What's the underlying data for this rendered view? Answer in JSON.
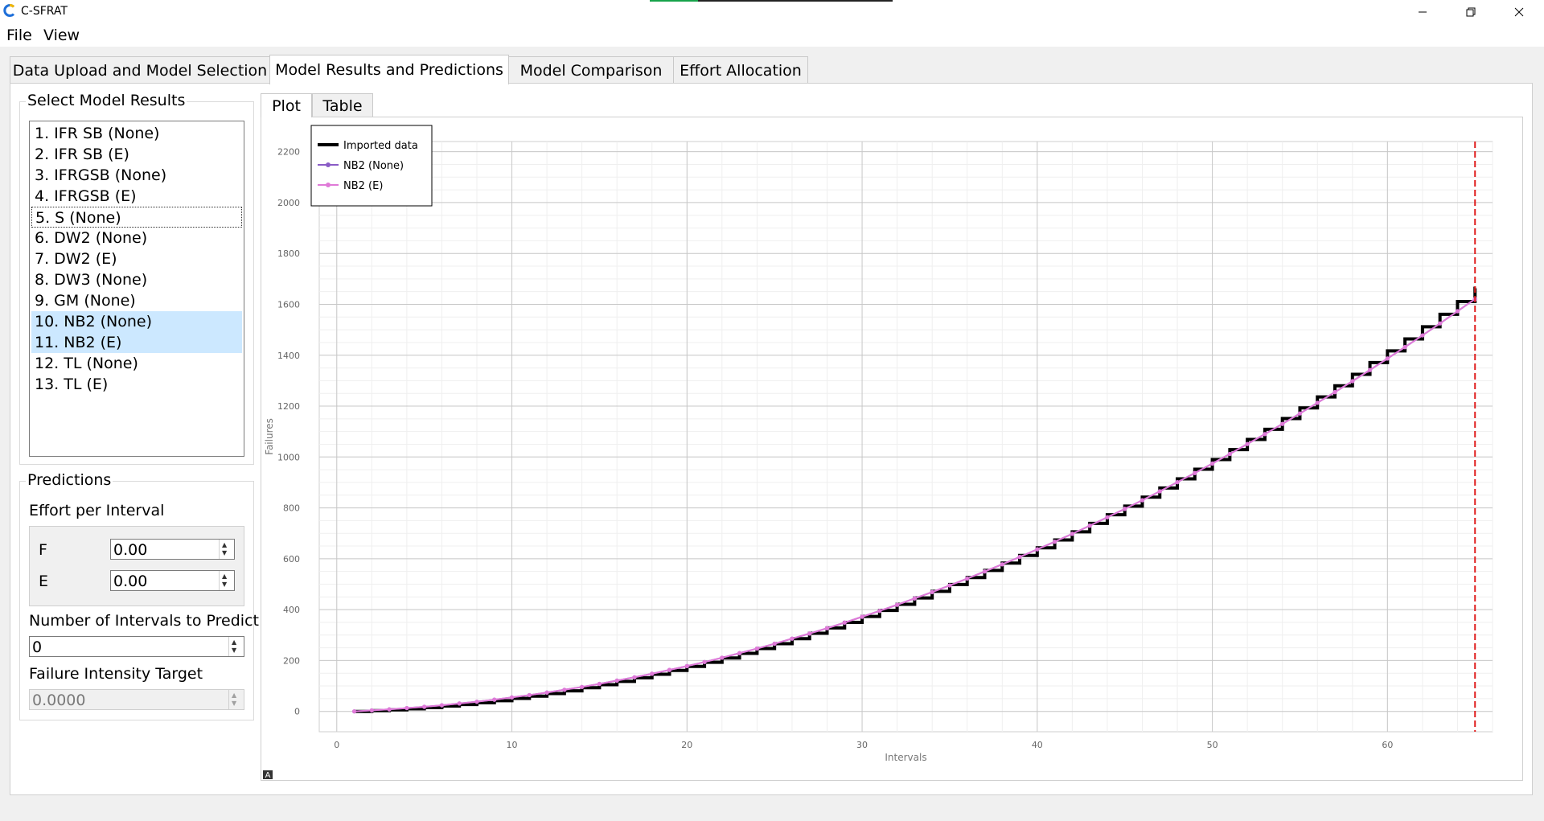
{
  "window": {
    "title": "C-SFRAT",
    "progress": 0.2
  },
  "menu": [
    "File",
    "View"
  ],
  "tabs": [
    "Data Upload and Model Selection",
    "Model Results and Predictions",
    "Model Comparison",
    "Effort Allocation"
  ],
  "active_tab": 1,
  "left": {
    "model_results_title": "Select Model Results",
    "models": [
      "1. IFR SB (None)",
      "2. IFR SB (E)",
      "3. IFRGSB (None)",
      "4. IFRGSB (E)",
      "5. S (None)",
      "6. DW2 (None)",
      "7. DW2 (E)",
      "8. DW3 (None)",
      "9. GM (None)",
      "10. NB2 (None)",
      "11. NB2 (E)",
      "12. TL (None)",
      "13. TL (E)"
    ],
    "selected": [
      9,
      10
    ],
    "focused": 4,
    "predictions": {
      "title": "Predictions",
      "effort_label": "Effort per Interval",
      "f_label": "F",
      "f_value": "0.00",
      "e_label": "E",
      "e_value": "0.00",
      "intervals_label": "Number of Intervals to Predict",
      "intervals_value": "0",
      "target_label": "Failure Intensity Target",
      "target_value": "0.0000"
    }
  },
  "plot_tabs": [
    "Plot",
    "Table"
  ],
  "colors": {
    "imported": "#000000",
    "nb2_none": "#8a5cc6",
    "nb2_e": "#e07ad8",
    "end_line": "#e02020",
    "selected_bg": "#cce8ff"
  },
  "chart_data": {
    "type": "line",
    "title": "",
    "xlabel": "Intervals",
    "ylabel": "Failures",
    "xlim": [
      -1,
      66
    ],
    "ylim": [
      -80,
      2240
    ],
    "xticks": [
      0,
      10,
      20,
      30,
      40,
      50,
      60
    ],
    "yticks": [
      0,
      200,
      400,
      600,
      800,
      1000,
      1200,
      1400,
      1600,
      1800,
      2000,
      2200
    ],
    "grid": true,
    "legend_position": "top-left",
    "end_interval": 65,
    "legend": [
      "Imported data",
      "NB2 (None)",
      "NB2 (E)"
    ],
    "series": [
      {
        "name": "Imported data",
        "style": "step",
        "x": [
          1,
          2,
          3,
          4,
          5,
          6,
          7,
          8,
          9,
          10,
          11,
          12,
          13,
          14,
          15,
          16,
          17,
          18,
          19,
          20,
          21,
          22,
          23,
          24,
          25,
          26,
          27,
          28,
          29,
          30,
          31,
          32,
          33,
          34,
          35,
          36,
          37,
          38,
          39,
          40,
          41,
          42,
          43,
          44,
          45,
          46,
          47,
          48,
          49,
          50,
          51,
          52,
          53,
          54,
          55,
          56,
          57,
          58,
          59,
          60,
          61,
          62,
          63,
          64,
          65
        ],
        "y": [
          0,
          3,
          6,
          10,
          15,
          21,
          27,
          34,
          42,
          51,
          60,
          70,
          81,
          93,
          105,
          118,
          132,
          146,
          161,
          177,
          193,
          210,
          228,
          247,
          266,
          286,
          307,
          328,
          350,
          373,
          397,
          421,
          446,
          472,
          499,
          526,
          554,
          583,
          613,
          643,
          674,
          706,
          739,
          773,
          807,
          842,
          878,
          914,
          952,
          990,
          1029,
          1069,
          1109,
          1151,
          1193,
          1236,
          1280,
          1325,
          1371,
          1417,
          1464,
          1512,
          1561,
          1611,
          1663
        ]
      },
      {
        "name": "NB2 (None)",
        "style": "line",
        "x": [
          1,
          2,
          3,
          4,
          5,
          6,
          7,
          8,
          9,
          10,
          11,
          12,
          13,
          14,
          15,
          16,
          17,
          18,
          19,
          20,
          21,
          22,
          23,
          24,
          25,
          26,
          27,
          28,
          29,
          30,
          31,
          32,
          33,
          34,
          35,
          36,
          37,
          38,
          39,
          40,
          41,
          42,
          43,
          44,
          45,
          46,
          47,
          48,
          49,
          50,
          51,
          52,
          53,
          54,
          55,
          56,
          57,
          58,
          59,
          60,
          61,
          62,
          63,
          64,
          65
        ],
        "y": [
          0,
          4,
          8,
          13,
          18,
          24,
          31,
          38,
          46,
          55,
          64,
          74,
          85,
          96,
          108,
          121,
          134,
          148,
          163,
          178,
          194,
          211,
          229,
          247,
          266,
          286,
          306,
          327,
          349,
          372,
          395,
          419,
          444,
          469,
          495,
          522,
          550,
          578,
          607,
          637,
          667,
          698,
          730,
          763,
          796,
          830,
          865,
          901,
          937,
          974,
          1012,
          1051,
          1090,
          1130,
          1171,
          1213,
          1255,
          1298,
          1342,
          1387,
          1432,
          1478,
          1525,
          1573,
          1621
        ]
      },
      {
        "name": "NB2 (E)",
        "style": "line",
        "x": [
          1,
          2,
          3,
          4,
          5,
          6,
          7,
          8,
          9,
          10,
          11,
          12,
          13,
          14,
          15,
          16,
          17,
          18,
          19,
          20,
          21,
          22,
          23,
          24,
          25,
          26,
          27,
          28,
          29,
          30,
          31,
          32,
          33,
          34,
          35,
          36,
          37,
          38,
          39,
          40,
          41,
          42,
          43,
          44,
          45,
          46,
          47,
          48,
          49,
          50,
          51,
          52,
          53,
          54,
          55,
          56,
          57,
          58,
          59,
          60,
          61,
          62,
          63,
          64,
          65
        ],
        "y": [
          0,
          4,
          8,
          13,
          18,
          24,
          31,
          38,
          46,
          55,
          64,
          74,
          85,
          96,
          108,
          121,
          134,
          148,
          163,
          178,
          194,
          211,
          229,
          247,
          266,
          286,
          306,
          327,
          349,
          372,
          395,
          419,
          444,
          469,
          495,
          522,
          550,
          578,
          607,
          637,
          667,
          698,
          730,
          763,
          796,
          830,
          865,
          901,
          937,
          974,
          1012,
          1051,
          1090,
          1130,
          1171,
          1213,
          1255,
          1298,
          1342,
          1387,
          1432,
          1478,
          1525,
          1573,
          1621
        ]
      }
    ]
  }
}
